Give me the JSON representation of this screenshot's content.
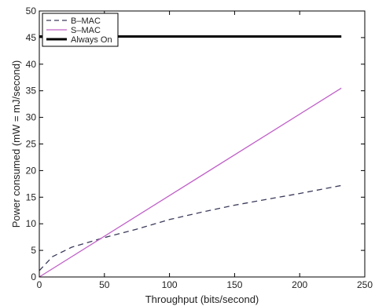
{
  "chart_data": {
    "type": "line",
    "title": "",
    "xlabel": "Throughput (bits/second)",
    "ylabel": "Power consumed (mW = mJ/second)",
    "xlim": [
      0,
      250
    ],
    "ylim": [
      0,
      50
    ],
    "xticks": [
      0,
      50,
      100,
      150,
      200,
      250
    ],
    "yticks": [
      0,
      5,
      10,
      15,
      20,
      25,
      30,
      35,
      40,
      45,
      50
    ],
    "grid": false,
    "legend_position": "top-left",
    "series": [
      {
        "name": "B–MAC",
        "color": "#3a3a5a",
        "style": "dashed",
        "x": [
          0,
          10,
          25,
          50,
          75,
          100,
          125,
          150,
          175,
          200,
          232
        ],
        "y": [
          1.2,
          3.8,
          5.6,
          7.4,
          9.0,
          10.8,
          12.2,
          13.5,
          14.6,
          15.7,
          17.2
        ]
      },
      {
        "name": "S–MAC",
        "color": "#c060c8",
        "style": "solid",
        "x": [
          0,
          232
        ],
        "y": [
          0,
          35.5
        ]
      },
      {
        "name": "Always On",
        "color": "#000000",
        "style": "thick",
        "x": [
          0,
          232
        ],
        "y": [
          45.2,
          45.2
        ]
      }
    ]
  }
}
